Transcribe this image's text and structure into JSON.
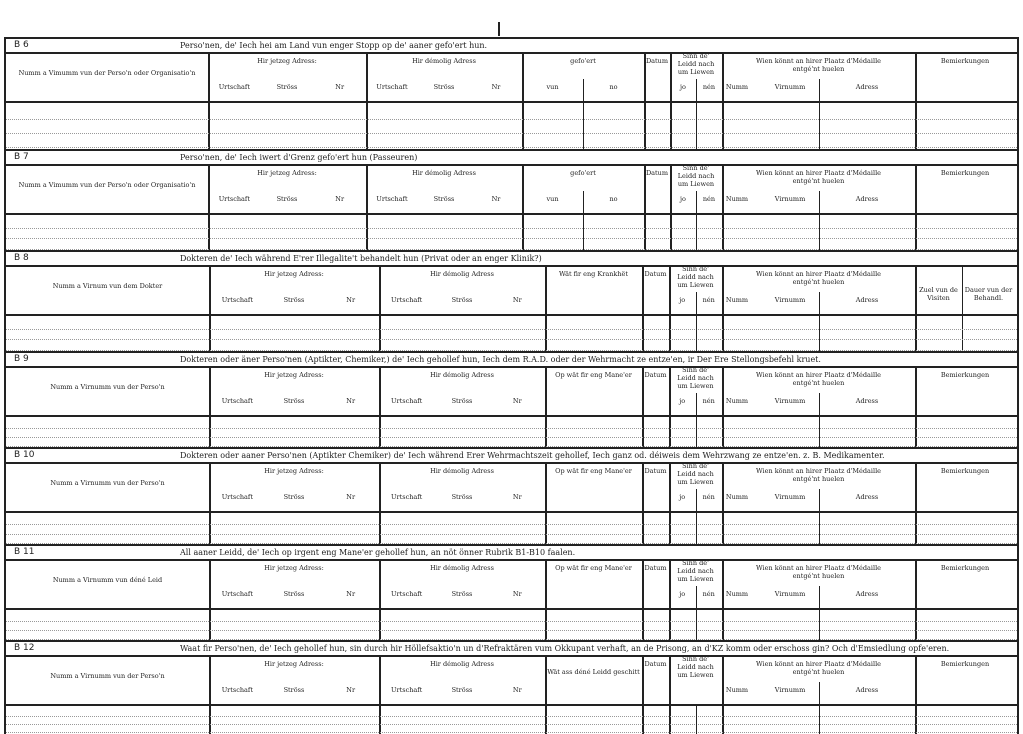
{
  "labels": {
    "jetzeg": "Hir jetzeg Adress:",
    "demolig": "Hir démolig Adress",
    "urtschaft": "Urtschaft",
    "stross": "Ströss",
    "nr": "Nr",
    "gefoert": "gefo'ert",
    "vun": "vun",
    "no": "no",
    "datum": "Datum",
    "sinn": "Sinn de' Leidd nach um Liewen",
    "jo": "jo",
    "nen": "nén",
    "wien": "Wien könnt an hirer Plaatz d'Médaille entgé'nt huelen",
    "numm": "Numm",
    "virnumm": "Virnumm",
    "adress": "Adress",
    "bemerkungen": "Bemierkungen",
    "zuel": "Zuel vun de Visiten",
    "dauer": "Dauer vun der Behandl."
  },
  "sections": [
    {
      "code": "B 6",
      "title": "Perso'nen, de' Iech hei am Land vun enger Stopp op de' aaner gefo'ert hun.",
      "name_col": "Numm a Vimumm vun der Perso'n oder Organisatio'n",
      "type": "A"
    },
    {
      "code": "B 7",
      "title": "Perso'nen, de' Iech iwert d'Grenz gefo'ert hun (Passeuren)",
      "name_col": "Numm a Vimumm vun der Perso'n oder Organisatio'n",
      "type": "A"
    },
    {
      "code": "B 8",
      "title": "Dokteren de' Iech während E'rer Illegalite't behandelt hun (Privat oder an enger Klinik?)",
      "name_col": "Numm a Virnum vun dem Dokter",
      "col3": "Wät fir eng Krankhët",
      "type": "C"
    },
    {
      "code": "B 9",
      "title": "Dokteren oder äner Perso'nen (Aptikter, Chemiker,) de' Iech gehollef hun, Iech dem R.A.D. oder der Wehrmacht ze entze'en, ir Der Ere Stellongsbefehl kruet.",
      "name_col": "Numm a Virnumm vun der Perso'n",
      "col3": "Op wät fir eng Mane'er",
      "type": "B"
    },
    {
      "code": "B 10",
      "title": "Dokteren oder aaner Perso'nen (Aptikter Chemiker) de' Iech während Erer Wehrmachtszeit gehollef, Iech ganz od. déiweis dem Wehrzwang ze entze'en. z. B. Medikamenter.",
      "name_col": "Numm a Virnumm vun der Perso'n",
      "col3": "Op wät fir eng Mane'er",
      "type": "B"
    },
    {
      "code": "B 11",
      "title": "All aaner Leidd, de' Iech op irgent eng Mane'er gehollef hun, an nöt önner Rubrik B1-B10 faalen.",
      "name_col": "Numm a Virnumm vun déné Leid",
      "col3": "Op wät fir eng Mane'er",
      "type": "B"
    },
    {
      "code": "B 12",
      "title": "Waat fir Perso'nen, de' Iech gehollef hun, sin durch hir Höllefsaktio'n un d'Refraktären vum Okkupant verhaft, an de Prisong, an d'KZ komm oder erschoss gin? Och d'Emsiedlung opfe'eren.",
      "name_col": "Numm a Virnumm vun der Perso'n",
      "col3": "Wät ass déné Leidd geschitt",
      "type": "B"
    }
  ]
}
